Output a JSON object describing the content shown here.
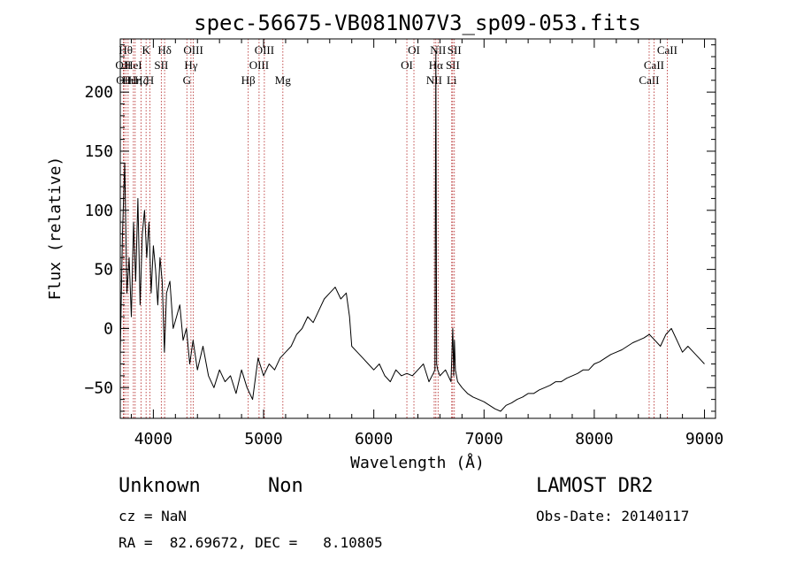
{
  "chart_data": {
    "type": "line",
    "title": "spec-56675-VB081N07V3_sp09-053.fits",
    "xlabel": "Wavelength (Å)",
    "ylabel": "Flux (relative)",
    "xlim": [
      3700,
      9100
    ],
    "ylim": [
      -76,
      245
    ],
    "xticks": [
      4000,
      5000,
      6000,
      7000,
      8000,
      9000
    ],
    "yticks": [
      -50,
      0,
      50,
      100,
      150,
      200
    ],
    "xtick_labels": [
      "4000",
      "5000",
      "6000",
      "7000",
      "8000",
      "9000"
    ],
    "ytick_labels": [
      "−50",
      "0",
      "50",
      "100",
      "150",
      "200"
    ],
    "grid": false,
    "line_color": "#000000",
    "marker_color": "#b22222",
    "series": [
      {
        "x": [
          3700,
          3720,
          3740,
          3760,
          3780,
          3800,
          3820,
          3840,
          3860,
          3880,
          3900,
          3920,
          3940,
          3960,
          3980,
          4000,
          4020,
          4040,
          4060,
          4080,
          4100,
          4120,
          4150,
          4180,
          4210,
          4240,
          4270,
          4300,
          4330,
          4360,
          4400,
          4450,
          4500,
          4550,
          4600,
          4650,
          4700,
          4750,
          4800,
          4850,
          4900,
          4950,
          5000,
          5050,
          5100,
          5150,
          5200,
          5250,
          5300,
          5350,
          5400,
          5450,
          5500,
          5550,
          5600,
          5650,
          5700,
          5750,
          5780,
          5800,
          5850,
          5900,
          5950,
          6000,
          6050,
          6100,
          6150,
          6200,
          6250,
          6300,
          6350,
          6400,
          6450,
          6500,
          6540,
          6555,
          6563,
          6570,
          6580,
          6600,
          6650,
          6700,
          6716,
          6725,
          6731,
          6740,
          6760,
          6800,
          6850,
          6900,
          6950,
          7000,
          7050,
          7100,
          7150,
          7200,
          7250,
          7300,
          7350,
          7400,
          7450,
          7500,
          7550,
          7600,
          7650,
          7700,
          7750,
          7800,
          7850,
          7900,
          7950,
          8000,
          8050,
          8100,
          8150,
          8200,
          8250,
          8300,
          8350,
          8400,
          8450,
          8500,
          8550,
          8600,
          8650,
          8700,
          8750,
          8800,
          8850,
          8900,
          8950,
          9000
        ],
        "y": [
          -20,
          80,
          140,
          30,
          60,
          10,
          90,
          40,
          110,
          20,
          80,
          100,
          60,
          90,
          30,
          70,
          50,
          20,
          60,
          40,
          -20,
          30,
          40,
          0,
          10,
          20,
          -10,
          0,
          -30,
          -10,
          -35,
          -15,
          -40,
          -50,
          -35,
          -45,
          -40,
          -55,
          -35,
          -50,
          -60,
          -25,
          -40,
          -30,
          -35,
          -25,
          -20,
          -15,
          -5,
          0,
          10,
          5,
          15,
          25,
          30,
          35,
          25,
          30,
          10,
          -15,
          -20,
          -25,
          -30,
          -35,
          -30,
          -40,
          -45,
          -35,
          -40,
          -38,
          -40,
          -35,
          -30,
          -45,
          -38,
          -35,
          235,
          -30,
          -35,
          -40,
          -35,
          -45,
          0,
          -40,
          -10,
          -35,
          -45,
          -50,
          -55,
          -58,
          -60,
          -62,
          -65,
          -68,
          -70,
          -65,
          -63,
          -60,
          -58,
          -55,
          -55,
          -52,
          -50,
          -48,
          -45,
          -45,
          -42,
          -40,
          -38,
          -35,
          -35,
          -30,
          -28,
          -25,
          -22,
          -20,
          -18,
          -15,
          -12,
          -10,
          -8,
          -5,
          -10,
          -15,
          -5,
          0,
          -10,
          -20,
          -15,
          -20,
          -25,
          -30
        ]
      }
    ],
    "line_markers": [
      {
        "wl": 3727,
        "label": "OII",
        "row": 1
      },
      {
        "wl": 3734,
        "label": "OII",
        "row": 2
      },
      {
        "wl": 3750,
        "label": "Hθ",
        "row": 0
      },
      {
        "wl": 3771,
        "label": "Hι",
        "row": 2
      },
      {
        "wl": 3819,
        "label": "HeI",
        "row": 1
      },
      {
        "wl": 3835,
        "label": "Hη",
        "row": 2
      },
      {
        "wl": 3889,
        "label": "Hζ",
        "row": 2
      },
      {
        "wl": 3934,
        "label": "K",
        "row": 0
      },
      {
        "wl": 3968,
        "label": "H",
        "row": 2
      },
      {
        "wl": 4072,
        "label": "SII",
        "row": 1
      },
      {
        "wl": 4102,
        "label": "Hδ",
        "row": 0
      },
      {
        "wl": 4304,
        "label": "G",
        "row": 2
      },
      {
        "wl": 4341,
        "label": "Hγ",
        "row": 1
      },
      {
        "wl": 4363,
        "label": "OIII",
        "row": 0
      },
      {
        "wl": 4861,
        "label": "Hβ",
        "row": 2
      },
      {
        "wl": 4959,
        "label": "OIII",
        "row": 1
      },
      {
        "wl": 5007,
        "label": "OIII",
        "row": 0
      },
      {
        "wl": 5175,
        "label": "Mg",
        "row": 2
      },
      {
        "wl": 6300,
        "label": "OI",
        "row": 1
      },
      {
        "wl": 6364,
        "label": "OI",
        "row": 0
      },
      {
        "wl": 6548,
        "label": "NII",
        "row": 2
      },
      {
        "wl": 6563,
        "label": "Hα",
        "row": 1
      },
      {
        "wl": 6583,
        "label": "NII",
        "row": 0
      },
      {
        "wl": 6707,
        "label": "Li",
        "row": 2
      },
      {
        "wl": 6716,
        "label": "SII",
        "row": 1
      },
      {
        "wl": 6731,
        "label": "SII",
        "row": 0
      },
      {
        "wl": 8498,
        "label": "CaII",
        "row": 2
      },
      {
        "wl": 8542,
        "label": "CaII",
        "row": 1
      },
      {
        "wl": 8662,
        "label": "CaII",
        "row": 0
      }
    ]
  },
  "info": {
    "classification": "Unknown",
    "subclass": "Non",
    "survey": "LAMOST DR2",
    "cz": "cz = NaN",
    "obs_date": "Obs-Date: 20140117",
    "coords": "RA =  82.69672, DEC =   8.10805"
  }
}
